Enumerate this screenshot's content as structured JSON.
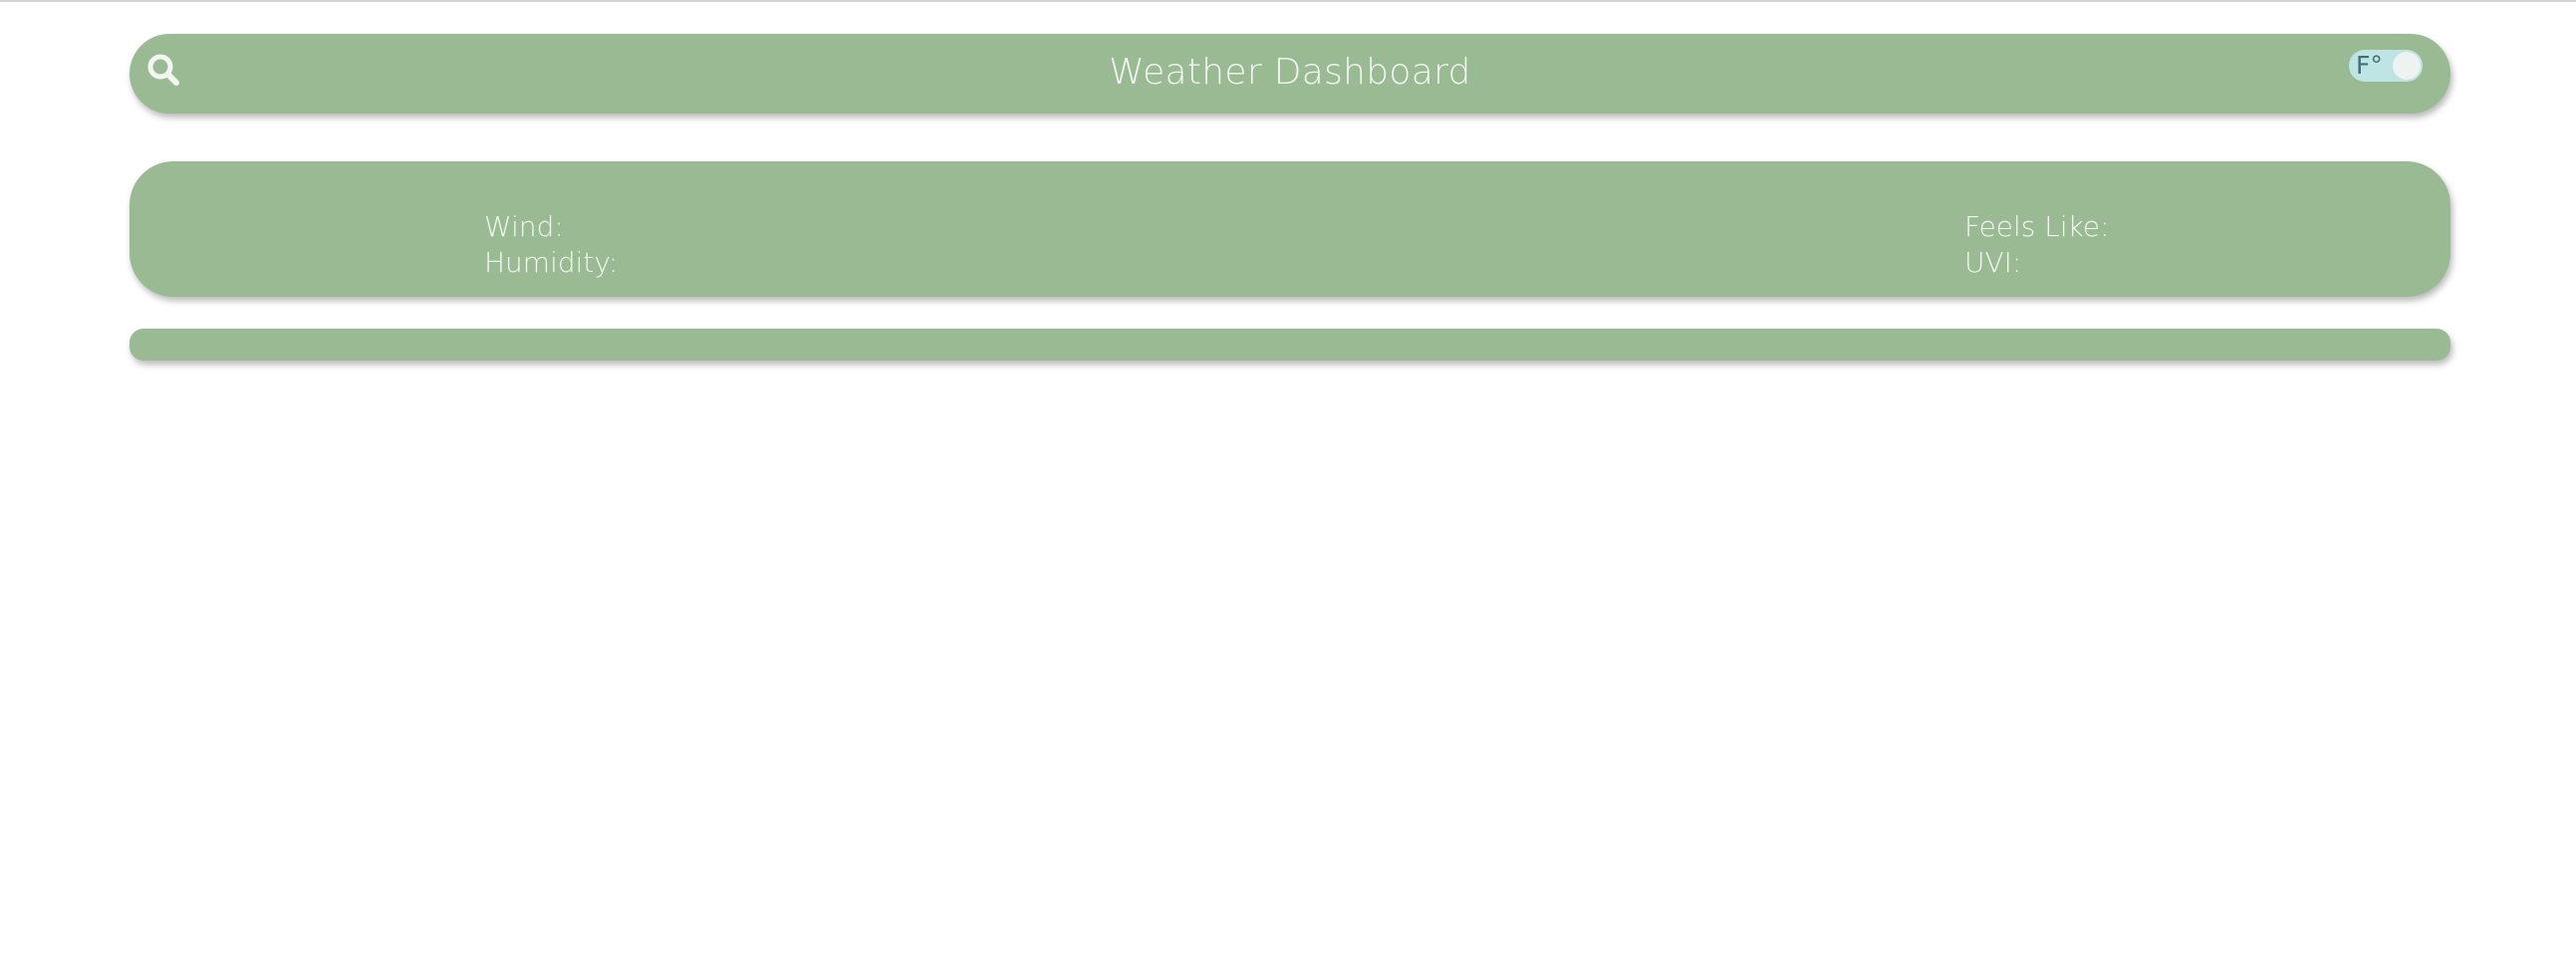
{
  "header": {
    "title": "Weather Dashboard",
    "search_icon": "search-icon",
    "unit_toggle": {
      "label": "F°",
      "state": "off"
    }
  },
  "current": {
    "wind_label": "Wind:",
    "humidity_label": "Humidity:",
    "feels_like_label": "Feels Like:",
    "uvi_label": "UVI:"
  },
  "colors": {
    "panel": "#9aba94",
    "text": "#f3f7f2",
    "toggle_track": "#bfe4e4",
    "toggle_text": "#406f78"
  }
}
